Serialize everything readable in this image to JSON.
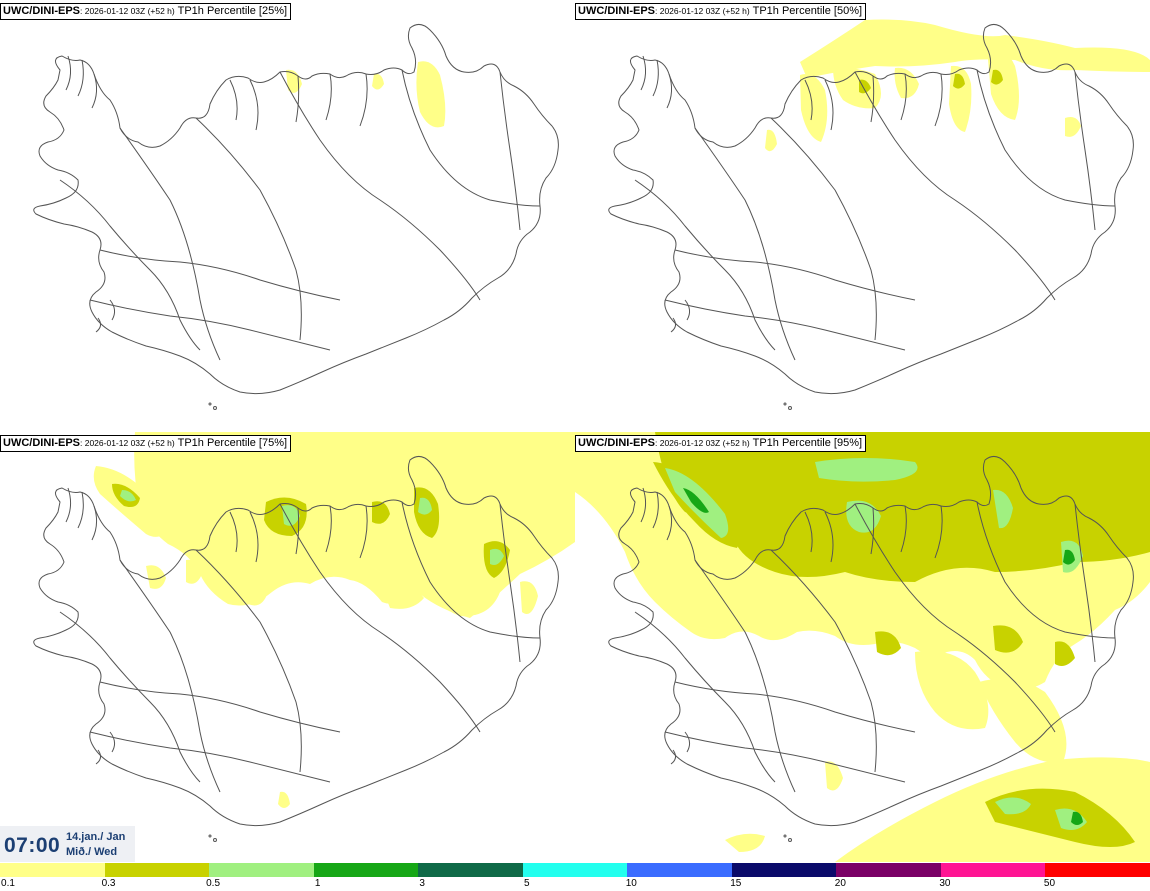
{
  "panels": [
    {
      "model": "UWC/DINI-EPS",
      "run": ": 2026-01-12 03Z (+52 h)",
      "field": "TP1h Percentile [25%]"
    },
    {
      "model": "UWC/DINI-EPS",
      "run": ": 2026-01-12 03Z (+52 h)",
      "field": "TP1h Percentile [50%]"
    },
    {
      "model": "UWC/DINI-EPS",
      "run": ": 2026-01-12 03Z (+52 h)",
      "field": "TP1h Percentile [75%]"
    },
    {
      "model": "UWC/DINI-EPS",
      "run": ": 2026-01-12 03Z (+52 h)",
      "field": "TP1h Percentile [95%]"
    }
  ],
  "valid_time": {
    "clock": "07:00",
    "date": "14.jan./ Jan",
    "weekday": "Mið./ Wed"
  },
  "legend": {
    "labels": [
      "0.1",
      "0.3",
      "0.5",
      "1",
      "3",
      "5",
      "10",
      "15",
      "20",
      "30",
      "50"
    ],
    "colors": [
      "#ffff88",
      "#c8d200",
      "#a0f080",
      "#16a716",
      "#0f6a48",
      "#22ffee",
      "#3a6cff",
      "#0a0a6a",
      "#7a0066",
      "#ff1493",
      "#ff0000"
    ]
  },
  "colors": {
    "coast": "#555555",
    "light_precip": "#ffff88",
    "moderate_precip": "#c8d200",
    "heavy_precip": "#a0f080",
    "very_heavy_precip": "#16a716"
  }
}
